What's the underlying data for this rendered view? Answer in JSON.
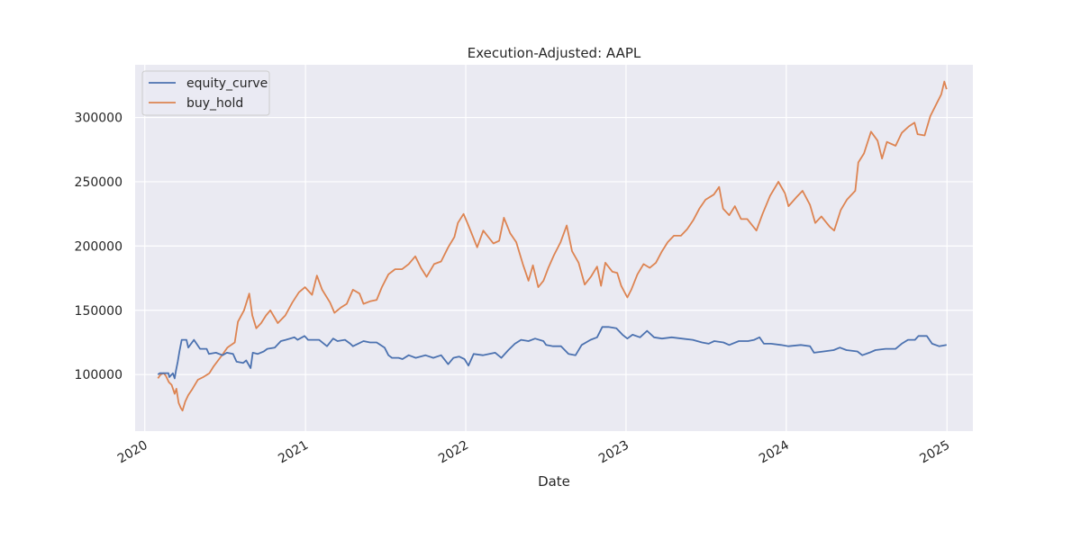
{
  "chart_data": {
    "type": "line",
    "title": "Execution-Adjusted: AAPL",
    "xlabel": "Date",
    "ylabel": "",
    "x_ticks": [
      "2020",
      "2021",
      "2022",
      "2023",
      "2024",
      "2025"
    ],
    "y_ticks": [
      "100000",
      "150000",
      "200000",
      "250000",
      "300000"
    ],
    "xlim": [
      "2019-12-10",
      "2025-03-01"
    ],
    "ylim": [
      56000,
      341000
    ],
    "grid": true,
    "legend_position": "top-left",
    "series": [
      {
        "name": "equity_curve",
        "color": "#4c72b0",
        "points": [
          [
            "2020-01-31",
            100000
          ],
          [
            "2020-02-04",
            101000
          ],
          [
            "2020-02-24",
            101000
          ],
          [
            "2020-02-26",
            98000
          ],
          [
            "2020-03-05",
            101000
          ],
          [
            "2020-03-09",
            97000
          ],
          [
            "2020-03-12",
            103000
          ],
          [
            "2020-03-16",
            110000
          ],
          [
            "2020-03-20",
            118000
          ],
          [
            "2020-03-25",
            127000
          ],
          [
            "2020-04-05",
            127000
          ],
          [
            "2020-04-09",
            121000
          ],
          [
            "2020-04-22",
            127000
          ],
          [
            "2020-05-06",
            120000
          ],
          [
            "2020-05-21",
            120000
          ],
          [
            "2020-05-26",
            116000
          ],
          [
            "2020-06-11",
            117000
          ],
          [
            "2020-06-26",
            115000
          ],
          [
            "2020-07-06",
            117000
          ],
          [
            "2020-07-20",
            116000
          ],
          [
            "2020-07-28",
            110000
          ],
          [
            "2020-08-12",
            109000
          ],
          [
            "2020-08-19",
            111000
          ],
          [
            "2020-08-29",
            105000
          ],
          [
            "2020-09-03",
            117000
          ],
          [
            "2020-09-14",
            116000
          ],
          [
            "2020-09-28",
            118000
          ],
          [
            "2020-10-06",
            120000
          ],
          [
            "2020-10-23",
            121000
          ],
          [
            "2020-11-06",
            126000
          ],
          [
            "2020-11-17",
            127000
          ],
          [
            "2020-12-07",
            129000
          ],
          [
            "2020-12-14",
            127000
          ],
          [
            "2020-12-30",
            130000
          ],
          [
            "2021-01-07",
            127000
          ],
          [
            "2021-02-01",
            127000
          ],
          [
            "2021-02-19",
            122000
          ],
          [
            "2021-03-05",
            128000
          ],
          [
            "2021-03-15",
            126000
          ],
          [
            "2021-04-01",
            127000
          ],
          [
            "2021-04-13",
            124000
          ],
          [
            "2021-04-19",
            122000
          ],
          [
            "2021-05-13",
            126000
          ],
          [
            "2021-05-28",
            125000
          ],
          [
            "2021-06-12",
            125000
          ],
          [
            "2021-06-30",
            121000
          ],
          [
            "2021-07-09",
            115000
          ],
          [
            "2021-07-17",
            113000
          ],
          [
            "2021-08-01",
            113000
          ],
          [
            "2021-08-10",
            112000
          ],
          [
            "2021-08-24",
            115000
          ],
          [
            "2021-09-09",
            113000
          ],
          [
            "2021-10-01",
            115000
          ],
          [
            "2021-10-19",
            113000
          ],
          [
            "2021-11-06",
            115000
          ],
          [
            "2021-11-22",
            108000
          ],
          [
            "2021-12-04",
            113000
          ],
          [
            "2021-12-17",
            114000
          ],
          [
            "2021-12-29",
            112000
          ],
          [
            "2022-01-07",
            107000
          ],
          [
            "2022-01-19",
            116000
          ],
          [
            "2022-02-09",
            115000
          ],
          [
            "2022-03-09",
            117000
          ],
          [
            "2022-03-23",
            113000
          ],
          [
            "2022-04-08",
            119000
          ],
          [
            "2022-04-23",
            124000
          ],
          [
            "2022-05-07",
            127000
          ],
          [
            "2022-05-24",
            126000
          ],
          [
            "2022-06-08",
            128000
          ],
          [
            "2022-06-27",
            126000
          ],
          [
            "2022-07-03",
            123000
          ],
          [
            "2022-07-19",
            122000
          ],
          [
            "2022-08-06",
            122000
          ],
          [
            "2022-08-23",
            116000
          ],
          [
            "2022-09-08",
            115000
          ],
          [
            "2022-09-22",
            123000
          ],
          [
            "2022-10-12",
            127000
          ],
          [
            "2022-10-27",
            129000
          ],
          [
            "2022-11-08",
            137000
          ],
          [
            "2022-11-22",
            137000
          ],
          [
            "2022-12-10",
            136000
          ],
          [
            "2022-12-24",
            131000
          ],
          [
            "2023-01-04",
            128000
          ],
          [
            "2023-01-16",
            131000
          ],
          [
            "2023-02-02",
            129000
          ],
          [
            "2023-02-18",
            134000
          ],
          [
            "2023-03-06",
            129000
          ],
          [
            "2023-03-24",
            128000
          ],
          [
            "2023-04-15",
            129000
          ],
          [
            "2023-05-08",
            128000
          ],
          [
            "2023-06-02",
            127000
          ],
          [
            "2023-06-23",
            125000
          ],
          [
            "2023-07-08",
            124000
          ],
          [
            "2023-07-21",
            126000
          ],
          [
            "2023-08-11",
            125000
          ],
          [
            "2023-08-24",
            123000
          ],
          [
            "2023-09-15",
            126000
          ],
          [
            "2023-10-06",
            126000
          ],
          [
            "2023-10-20",
            127000
          ],
          [
            "2023-11-01",
            129000
          ],
          [
            "2023-11-11",
            124000
          ],
          [
            "2023-11-27",
            124000
          ],
          [
            "2023-12-20",
            123000
          ],
          [
            "2024-01-06",
            122000
          ],
          [
            "2024-02-03",
            123000
          ],
          [
            "2024-02-24",
            122000
          ],
          [
            "2024-03-04",
            117000
          ],
          [
            "2024-03-26",
            118000
          ],
          [
            "2024-04-18",
            119000
          ],
          [
            "2024-05-02",
            121000
          ],
          [
            "2024-05-17",
            119000
          ],
          [
            "2024-06-11",
            118000
          ],
          [
            "2024-06-22",
            115000
          ],
          [
            "2024-07-08",
            117000
          ],
          [
            "2024-07-22",
            119000
          ],
          [
            "2024-08-14",
            120000
          ],
          [
            "2024-09-06",
            120000
          ],
          [
            "2024-09-20",
            124000
          ],
          [
            "2024-10-04",
            127000
          ],
          [
            "2024-10-20",
            127000
          ],
          [
            "2024-10-28",
            130000
          ],
          [
            "2024-11-16",
            130000
          ],
          [
            "2024-11-28",
            124000
          ],
          [
            "2024-12-14",
            122000
          ],
          [
            "2024-12-31",
            123000
          ]
        ]
      },
      {
        "name": "buy_hold",
        "color": "#dd8452",
        "points": [
          [
            "2020-01-31",
            97000
          ],
          [
            "2020-02-06",
            100000
          ],
          [
            "2020-02-13",
            101000
          ],
          [
            "2020-02-18",
            99000
          ],
          [
            "2020-02-25",
            94000
          ],
          [
            "2020-03-02",
            92000
          ],
          [
            "2020-03-09",
            85000
          ],
          [
            "2020-03-13",
            89000
          ],
          [
            "2020-03-18",
            78000
          ],
          [
            "2020-03-23",
            74000
          ],
          [
            "2020-03-27",
            72000
          ],
          [
            "2020-04-02",
            79000
          ],
          [
            "2020-04-09",
            84000
          ],
          [
            "2020-04-17",
            88000
          ],
          [
            "2020-04-24",
            92000
          ],
          [
            "2020-05-01",
            96000
          ],
          [
            "2020-05-13",
            98000
          ],
          [
            "2020-05-27",
            101000
          ],
          [
            "2020-06-05",
            106000
          ],
          [
            "2020-06-16",
            111000
          ],
          [
            "2020-06-27",
            116000
          ],
          [
            "2020-07-07",
            121000
          ],
          [
            "2020-07-24",
            125000
          ],
          [
            "2020-07-31",
            141000
          ],
          [
            "2020-08-14",
            150000
          ],
          [
            "2020-08-26",
            163000
          ],
          [
            "2020-09-02",
            146000
          ],
          [
            "2020-09-11",
            136000
          ],
          [
            "2020-09-22",
            140000
          ],
          [
            "2020-10-03",
            146000
          ],
          [
            "2020-10-13",
            150000
          ],
          [
            "2020-10-30",
            140000
          ],
          [
            "2020-11-16",
            146000
          ],
          [
            "2020-12-02",
            156000
          ],
          [
            "2020-12-17",
            164000
          ],
          [
            "2020-12-31",
            168000
          ],
          [
            "2021-01-16",
            162000
          ],
          [
            "2021-01-27",
            177000
          ],
          [
            "2021-02-08",
            166000
          ],
          [
            "2021-02-26",
            156000
          ],
          [
            "2021-03-08",
            148000
          ],
          [
            "2021-03-22",
            152000
          ],
          [
            "2021-04-05",
            155000
          ],
          [
            "2021-04-19",
            166000
          ],
          [
            "2021-05-04",
            163000
          ],
          [
            "2021-05-13",
            155000
          ],
          [
            "2021-05-28",
            157000
          ],
          [
            "2021-06-12",
            158000
          ],
          [
            "2021-06-24",
            168000
          ],
          [
            "2021-07-09",
            178000
          ],
          [
            "2021-07-24",
            182000
          ],
          [
            "2021-08-09",
            182000
          ],
          [
            "2021-08-24",
            186000
          ],
          [
            "2021-09-08",
            192000
          ],
          [
            "2021-09-21",
            183000
          ],
          [
            "2021-10-04",
            176000
          ],
          [
            "2021-10-21",
            186000
          ],
          [
            "2021-11-06",
            188000
          ],
          [
            "2021-11-22",
            199000
          ],
          [
            "2021-12-06",
            207000
          ],
          [
            "2021-12-14",
            218000
          ],
          [
            "2021-12-27",
            225000
          ],
          [
            "2022-01-07",
            216000
          ],
          [
            "2022-01-27",
            199000
          ],
          [
            "2022-02-10",
            212000
          ],
          [
            "2022-03-05",
            202000
          ],
          [
            "2022-03-18",
            204000
          ],
          [
            "2022-03-29",
            222000
          ],
          [
            "2022-04-12",
            210000
          ],
          [
            "2022-04-26",
            203000
          ],
          [
            "2022-05-11",
            186000
          ],
          [
            "2022-05-24",
            173000
          ],
          [
            "2022-06-03",
            185000
          ],
          [
            "2022-06-15",
            168000
          ],
          [
            "2022-06-27",
            173000
          ],
          [
            "2022-07-08",
            183000
          ],
          [
            "2022-07-21",
            193000
          ],
          [
            "2022-08-05",
            203000
          ],
          [
            "2022-08-19",
            216000
          ],
          [
            "2022-08-31",
            196000
          ],
          [
            "2022-09-15",
            187000
          ],
          [
            "2022-09-29",
            170000
          ],
          [
            "2022-10-13",
            176000
          ],
          [
            "2022-10-27",
            184000
          ],
          [
            "2022-11-05",
            169000
          ],
          [
            "2022-11-15",
            187000
          ],
          [
            "2022-12-01",
            180000
          ],
          [
            "2022-12-12",
            179000
          ],
          [
            "2022-12-21",
            169000
          ],
          [
            "2023-01-04",
            160000
          ],
          [
            "2023-01-13",
            166000
          ],
          [
            "2023-01-27",
            178000
          ],
          [
            "2023-02-10",
            186000
          ],
          [
            "2023-02-24",
            183000
          ],
          [
            "2023-03-10",
            187000
          ],
          [
            "2023-03-24",
            196000
          ],
          [
            "2023-04-06",
            203000
          ],
          [
            "2023-04-20",
            208000
          ],
          [
            "2023-05-06",
            208000
          ],
          [
            "2023-05-20",
            213000
          ],
          [
            "2023-06-03",
            220000
          ],
          [
            "2023-06-17",
            229000
          ],
          [
            "2023-07-01",
            236000
          ],
          [
            "2023-07-20",
            240000
          ],
          [
            "2023-08-01",
            246000
          ],
          [
            "2023-08-10",
            229000
          ],
          [
            "2023-08-24",
            224000
          ],
          [
            "2023-09-06",
            231000
          ],
          [
            "2023-09-20",
            221000
          ],
          [
            "2023-10-04",
            221000
          ],
          [
            "2023-10-25",
            212000
          ],
          [
            "2023-11-08",
            225000
          ],
          [
            "2023-11-25",
            239000
          ],
          [
            "2023-12-14",
            250000
          ],
          [
            "2023-12-29",
            241000
          ],
          [
            "2024-01-06",
            231000
          ],
          [
            "2024-01-24",
            238000
          ],
          [
            "2024-02-07",
            243000
          ],
          [
            "2024-02-24",
            232000
          ],
          [
            "2024-03-07",
            218000
          ],
          [
            "2024-03-21",
            223000
          ],
          [
            "2024-04-09",
            215000
          ],
          [
            "2024-04-19",
            212000
          ],
          [
            "2024-05-04",
            228000
          ],
          [
            "2024-05-18",
            236000
          ],
          [
            "2024-06-06",
            243000
          ],
          [
            "2024-06-13",
            265000
          ],
          [
            "2024-06-26",
            272000
          ],
          [
            "2024-07-12",
            289000
          ],
          [
            "2024-07-27",
            282000
          ],
          [
            "2024-08-06",
            268000
          ],
          [
            "2024-08-17",
            281000
          ],
          [
            "2024-09-06",
            278000
          ],
          [
            "2024-09-20",
            288000
          ],
          [
            "2024-10-06",
            293000
          ],
          [
            "2024-10-19",
            296000
          ],
          [
            "2024-10-26",
            287000
          ],
          [
            "2024-11-11",
            286000
          ],
          [
            "2024-11-24",
            301000
          ],
          [
            "2024-12-07",
            310000
          ],
          [
            "2024-12-19",
            318000
          ],
          [
            "2024-12-26",
            328000
          ],
          [
            "2024-12-31",
            322000
          ]
        ]
      }
    ]
  }
}
